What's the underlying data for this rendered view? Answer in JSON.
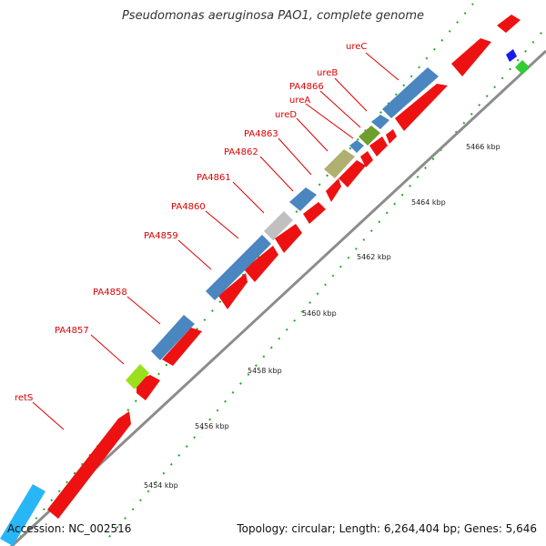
{
  "title": "Pseudomonas aeruginosa PAO1, complete genome",
  "accession": "Accession: NC_002516",
  "summary": "Topology: circular; Length: 6,264,404 bp; Genes: 5,646",
  "colors": {
    "forward_cds": "#ee1111",
    "steel_blue_cds": "#4a86c0",
    "backbone": "#8c8c8c",
    "tick_dots": "#22aa22",
    "gene_label": "#dd0000"
  },
  "gene_labels": [
    "ureC",
    "ureB",
    "PA4866",
    "ureA",
    "ureD",
    "PA4863",
    "PA4862",
    "PA4861",
    "PA4860",
    "PA4859",
    "PA4858",
    "PA4857",
    "retS"
  ],
  "kbp_labels": [
    "5466 kbp",
    "5464 kbp",
    "5462 kbp",
    "5460 kbp",
    "5458 kbp",
    "5456 kbp",
    "5454 kbp"
  ]
}
